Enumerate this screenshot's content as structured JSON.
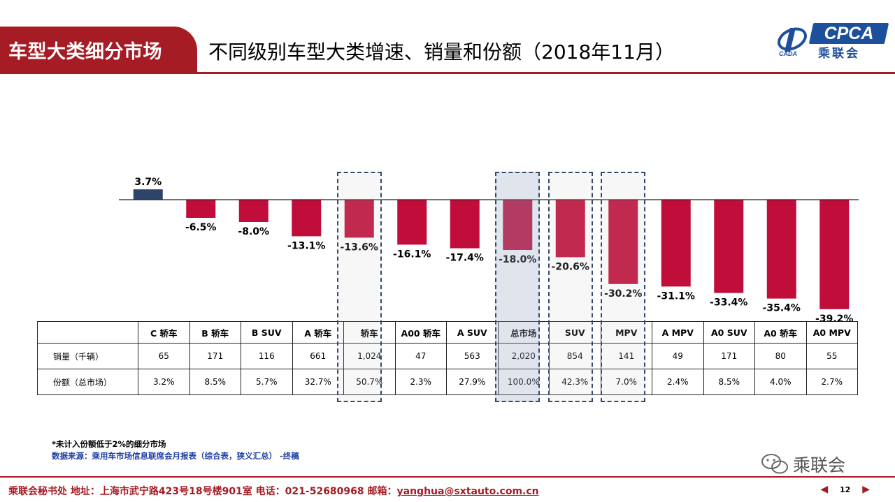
{
  "header": {
    "tab_label": "车型大类细分市场",
    "title": "不同级别车型大类增速、销量和份额（2018年11月）",
    "logo_text": "CPCA",
    "logo_sub": "乘联会"
  },
  "colors": {
    "brand": "#a51c24",
    "positive_bar": "#2e4469",
    "negative_bar": "#c00d3a",
    "highlight_box": "#344a6b"
  },
  "chart_data": {
    "type": "bar",
    "categories": [
      "C 轿车",
      "B 轿车",
      "B SUV",
      "A 轿车",
      "轿车",
      "A00 轿车",
      "A SUV",
      "总市场",
      "SUV",
      "MPV",
      "A MPV",
      "A0 SUV",
      "A0 轿车",
      "A0 MPV"
    ],
    "series": [
      {
        "values": [
          3.7,
          -6.5,
          -8.0,
          -13.1,
          -13.6,
          -16.1,
          -17.4,
          -18.0,
          -20.6,
          -30.2,
          -31.1,
          -33.4,
          -35.4,
          -39.2
        ]
      }
    ],
    "value_labels": [
      "3.7%",
      "-6.5%",
      "-8.0%",
      "-13.1%",
      "-13.6%",
      "-16.1%",
      "-17.4%",
      "-18.0%",
      "-20.6%",
      "-30.2%",
      "-31.1%",
      "-33.4%",
      "-35.4%",
      "-39.2%"
    ],
    "highlighted_categories": [
      "轿车",
      "总市场",
      "SUV",
      "MPV"
    ],
    "ylim": [
      -40,
      5
    ],
    "grid": false
  },
  "table": {
    "rows": [
      {
        "label": "销量（千辆）",
        "values": [
          "65",
          "171",
          "116",
          "661",
          "1,024",
          "47",
          "563",
          "2,020",
          "854",
          "141",
          "49",
          "171",
          "80",
          "55"
        ]
      },
      {
        "label": "份额（总市场）",
        "values": [
          "3.2%",
          "8.5%",
          "5.7%",
          "32.7%",
          "50.7%",
          "2.3%",
          "27.9%",
          "100.0%",
          "42.3%",
          "7.0%",
          "2.4%",
          "8.5%",
          "4.0%",
          "2.7%"
        ]
      }
    ]
  },
  "notes": {
    "note1": "*未计入份额低于2%的细分市场",
    "note2": "数据来源：乘用车市场信息联席会月报表（综合表，狭义汇总）  -终稿"
  },
  "watermark": "乘联会",
  "footer": {
    "text": "乘联会秘书处   地址：上海市武宁路423号18号楼901室  电话：021-52680968   邮箱：",
    "email": "yanghua@sxtauto.com.cn",
    "page": "12",
    "prev_icon": "triangle-left-icon",
    "next_icon": "triangle-right-icon"
  }
}
